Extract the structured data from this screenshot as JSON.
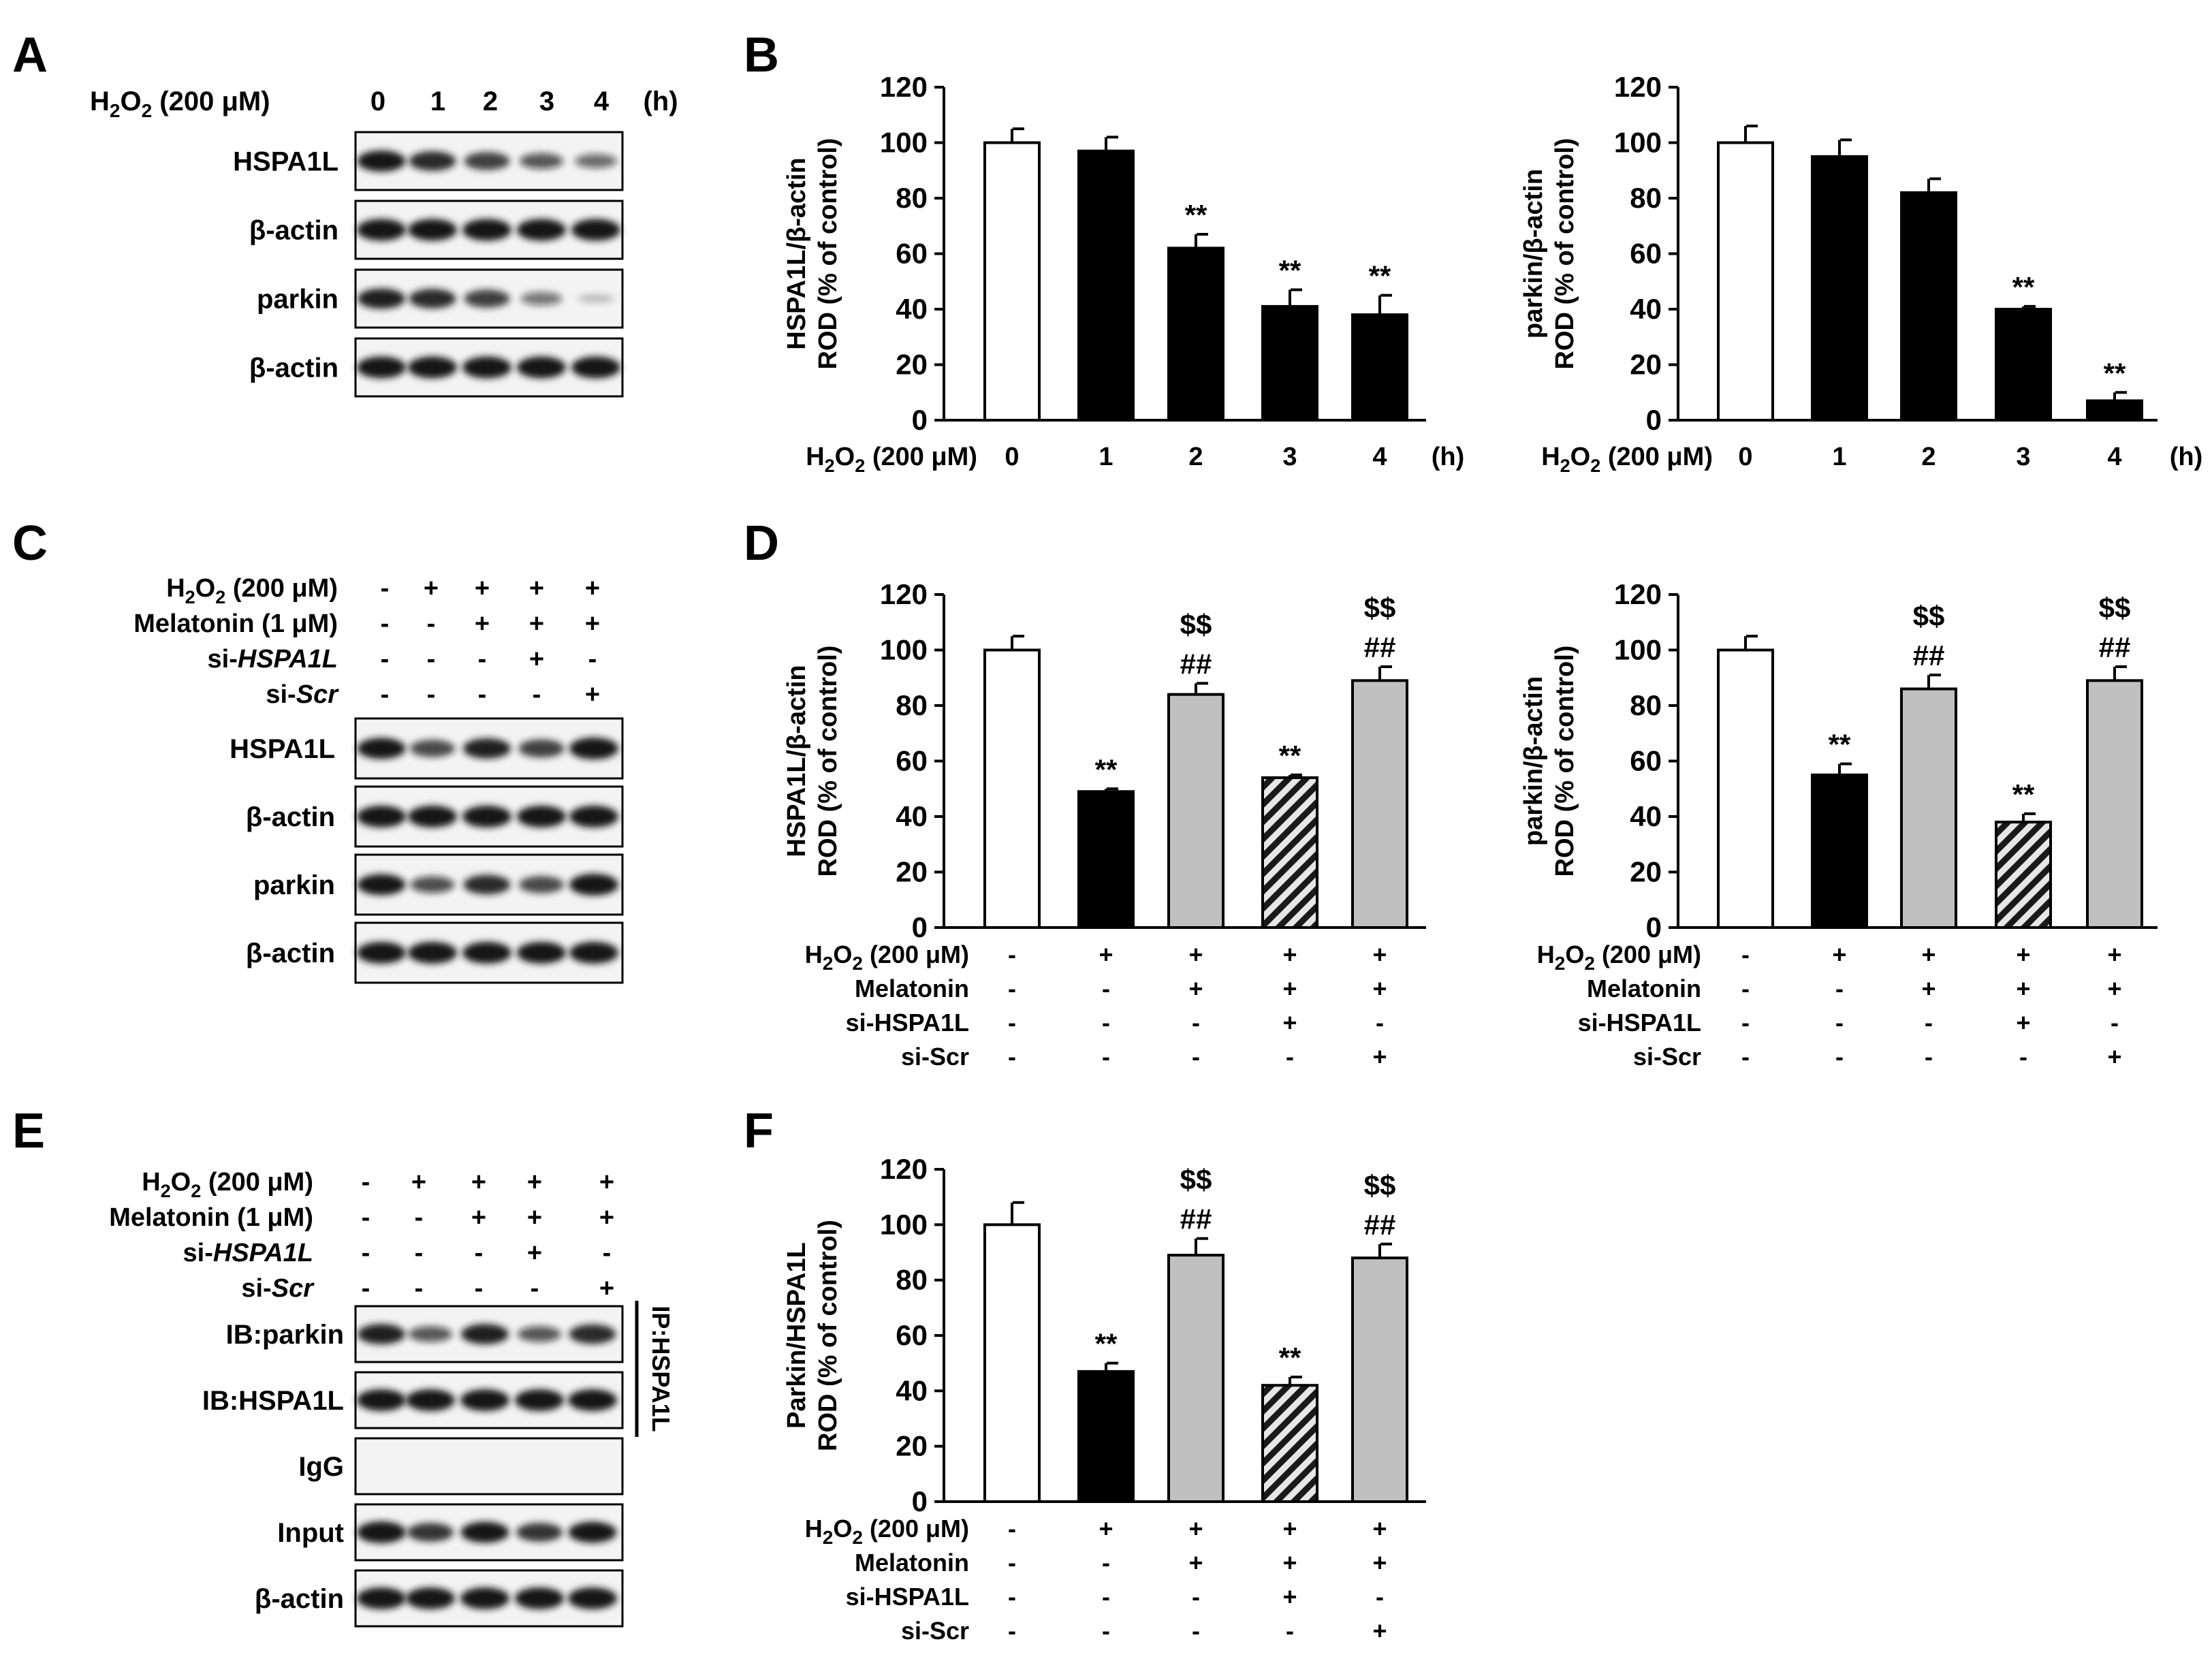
{
  "colors": {
    "open_bar": "#ffffff",
    "black_bar": "#000000",
    "gray_bar": "#c0c0c0",
    "hatched_bar": "hatch-dark-gray",
    "blot_background": "#f3f3f3",
    "band": "#161616"
  },
  "panel_labels": {
    "A": "A",
    "B": "B",
    "C": "C",
    "D": "D",
    "E": "E",
    "F": "F"
  },
  "labels": {
    "h2o2_label": "H2O2 (200 μM)",
    "h2o2_plain": "H",
    "h2o2_sub2": "2",
    "h2o2_o": "O",
    "h2o2_sub2b": "2",
    "h2o2_dose": " (200 μM)",
    "melatonin_full": "Melatonin (1 μM)",
    "melatonin": "Melatonin",
    "si_prefix": "si-",
    "si_hspa1l": "HSPA1L",
    "si_hspa1l_combined": "si-HSPA1L",
    "si_scr_combined": "si-Scr",
    "scr": "Scr",
    "hours_unit": "(h)",
    "plus": "+",
    "minus": "-",
    "ip_hspa1l": "IP:HSPA1L"
  },
  "panel_a": {
    "time_points": [
      "0",
      "1",
      "2",
      "3",
      "4"
    ],
    "unit": "(h)",
    "blots": [
      {
        "name": "HSPA1L",
        "intensities": [
          0.95,
          0.85,
          0.75,
          0.6,
          0.5
        ]
      },
      {
        "name": "β-actin",
        "intensities": [
          1,
          1,
          1,
          1,
          1
        ]
      },
      {
        "name": "parkin",
        "intensities": [
          0.9,
          0.85,
          0.75,
          0.45,
          0.1
        ]
      },
      {
        "name": "β-actin",
        "intensities": [
          1,
          1,
          1,
          1,
          1
        ]
      }
    ]
  },
  "panel_c": {
    "treatments": {
      "h2o2": [
        "-",
        "+",
        "+",
        "+",
        "+"
      ],
      "melatonin": [
        "-",
        "-",
        "+",
        "+",
        "+"
      ],
      "si_hspa1l": [
        "-",
        "-",
        "-",
        "+",
        "-"
      ],
      "si_scr": [
        "-",
        "-",
        "-",
        "-",
        "+"
      ]
    },
    "blots": [
      {
        "name": "HSPA1L",
        "intensities": [
          0.95,
          0.7,
          0.9,
          0.75,
          1
        ]
      },
      {
        "name": "β-actin",
        "intensities": [
          1,
          1,
          1,
          1,
          1
        ]
      },
      {
        "name": "parkin",
        "intensities": [
          0.95,
          0.65,
          0.85,
          0.7,
          1
        ]
      },
      {
        "name": "β-actin",
        "intensities": [
          1,
          1,
          1,
          1,
          1
        ]
      }
    ]
  },
  "panel_e": {
    "treatments": {
      "h2o2": [
        "-",
        "+",
        "+",
        "+",
        "+"
      ],
      "melatonin": [
        "-",
        "-",
        "+",
        "+",
        "+"
      ],
      "si_hspa1l": [
        "-",
        "-",
        "-",
        "+",
        "-"
      ],
      "si_scr": [
        "-",
        "-",
        "-",
        "-",
        "+"
      ]
    },
    "blots": [
      {
        "name": "IB:parkin",
        "intensities": [
          0.9,
          0.6,
          0.9,
          0.6,
          0.85
        ]
      },
      {
        "name": "IB:HSPA1L",
        "intensities": [
          1,
          1,
          1,
          1,
          1
        ]
      },
      {
        "name": "IgG",
        "intensities": [
          0,
          0,
          0,
          0,
          0
        ]
      },
      {
        "name": "Input",
        "intensities": [
          1,
          0.8,
          0.95,
          0.8,
          0.95
        ]
      },
      {
        "name": "β-actin",
        "intensities": [
          1,
          1,
          1,
          1,
          1
        ]
      }
    ],
    "ip_label": "IP:HSPA1L"
  },
  "chart_data": [
    {
      "id": "B-left",
      "type": "bar",
      "ylabel_line1": "HSPA1L/β-actin",
      "ylabel_line2": "ROD (% of control)",
      "ylim": [
        0,
        120
      ],
      "yticks": [
        0,
        20,
        40,
        60,
        80,
        100,
        120
      ],
      "x_label": "H2O2 (200 μM)",
      "x_unit": "(h)",
      "categories": [
        "0",
        "1",
        "2",
        "3",
        "4"
      ],
      "values": [
        100,
        97,
        62,
        41,
        38
      ],
      "errors": [
        5,
        5,
        5,
        6,
        7
      ],
      "styles": [
        "open",
        "black",
        "black",
        "black",
        "black"
      ],
      "annotations": [
        [],
        [],
        [
          "**"
        ],
        [
          "**"
        ],
        [
          "**"
        ]
      ]
    },
    {
      "id": "B-right",
      "type": "bar",
      "ylabel_line1": "parkin/β-actin",
      "ylabel_line2": "ROD (% of control)",
      "ylim": [
        0,
        120
      ],
      "yticks": [
        0,
        20,
        40,
        60,
        80,
        100,
        120
      ],
      "x_label": "H2O2 (200 μM)",
      "x_unit": "(h)",
      "categories": [
        "0",
        "1",
        "2",
        "3",
        "4"
      ],
      "values": [
        100,
        95,
        82,
        40,
        7
      ],
      "errors": [
        6,
        6,
        5,
        1,
        3
      ],
      "styles": [
        "open",
        "black",
        "black",
        "black",
        "black"
      ],
      "annotations": [
        [],
        [],
        [],
        [
          "**"
        ],
        [
          "**"
        ]
      ]
    },
    {
      "id": "D-left",
      "type": "bar",
      "ylabel_line1": "HSPA1L/β-actin",
      "ylabel_line2": "ROD (% of control)",
      "ylim": [
        0,
        120
      ],
      "yticks": [
        0,
        20,
        40,
        60,
        80,
        100,
        120
      ],
      "treatment_rows": [
        {
          "label": "H2O2 (200 μM)",
          "values": [
            "-",
            "+",
            "+",
            "+",
            "+"
          ]
        },
        {
          "label": "Melatonin",
          "values": [
            "-",
            "-",
            "+",
            "+",
            "+"
          ]
        },
        {
          "label": "si-HSPA1L",
          "values": [
            "-",
            "-",
            "-",
            "+",
            "-"
          ]
        },
        {
          "label": "si-Scr",
          "values": [
            "-",
            "-",
            "-",
            "-",
            "+"
          ]
        }
      ],
      "values": [
        100,
        49,
        84,
        54,
        89
      ],
      "errors": [
        5,
        1,
        4,
        1,
        5
      ],
      "styles": [
        "open",
        "black",
        "gray",
        "hatched",
        "gray"
      ],
      "annotations": [
        [],
        [
          "**"
        ],
        [
          "##",
          "$$"
        ],
        [
          "**"
        ],
        [
          "##",
          "$$"
        ]
      ]
    },
    {
      "id": "D-right",
      "type": "bar",
      "ylabel_line1": "parkin/β-actin",
      "ylabel_line2": "ROD (% of control)",
      "ylim": [
        0,
        120
      ],
      "yticks": [
        0,
        20,
        40,
        60,
        80,
        100,
        120
      ],
      "treatment_rows": [
        {
          "label": "H2O2 (200 μM)",
          "values": [
            "-",
            "+",
            "+",
            "+",
            "+"
          ]
        },
        {
          "label": "Melatonin",
          "values": [
            "-",
            "-",
            "+",
            "+",
            "+"
          ]
        },
        {
          "label": "si-HSPA1L",
          "values": [
            "-",
            "-",
            "-",
            "+",
            "-"
          ]
        },
        {
          "label": "si-Scr",
          "values": [
            "-",
            "-",
            "-",
            "-",
            "+"
          ]
        }
      ],
      "values": [
        100,
        55,
        86,
        38,
        89
      ],
      "errors": [
        5,
        4,
        5,
        3,
        5
      ],
      "styles": [
        "open",
        "black",
        "gray",
        "hatched",
        "gray"
      ],
      "annotations": [
        [],
        [
          "**"
        ],
        [
          "##",
          "$$"
        ],
        [
          "**"
        ],
        [
          "##",
          "$$"
        ]
      ]
    },
    {
      "id": "F",
      "type": "bar",
      "ylabel_line1": "Parkin/HSPA1L",
      "ylabel_line2": "ROD (% of control)",
      "ylim": [
        0,
        120
      ],
      "yticks": [
        0,
        20,
        40,
        60,
        80,
        100,
        120
      ],
      "treatment_rows": [
        {
          "label": "H2O2 (200 μM)",
          "values": [
            "-",
            "+",
            "+",
            "+",
            "+"
          ]
        },
        {
          "label": "Melatonin",
          "values": [
            "-",
            "-",
            "+",
            "+",
            "+"
          ]
        },
        {
          "label": "si-HSPA1L",
          "values": [
            "-",
            "-",
            "-",
            "+",
            "-"
          ]
        },
        {
          "label": "si-Scr",
          "values": [
            "-",
            "-",
            "-",
            "-",
            "+"
          ]
        }
      ],
      "values": [
        100,
        47,
        89,
        42,
        88
      ],
      "errors": [
        8,
        3,
        6,
        3,
        5
      ],
      "styles": [
        "open",
        "black",
        "gray",
        "hatched",
        "gray"
      ],
      "annotations": [
        [],
        [
          "**"
        ],
        [
          "##",
          "$$"
        ],
        [
          "**"
        ],
        [
          "##",
          "$$"
        ]
      ]
    }
  ]
}
